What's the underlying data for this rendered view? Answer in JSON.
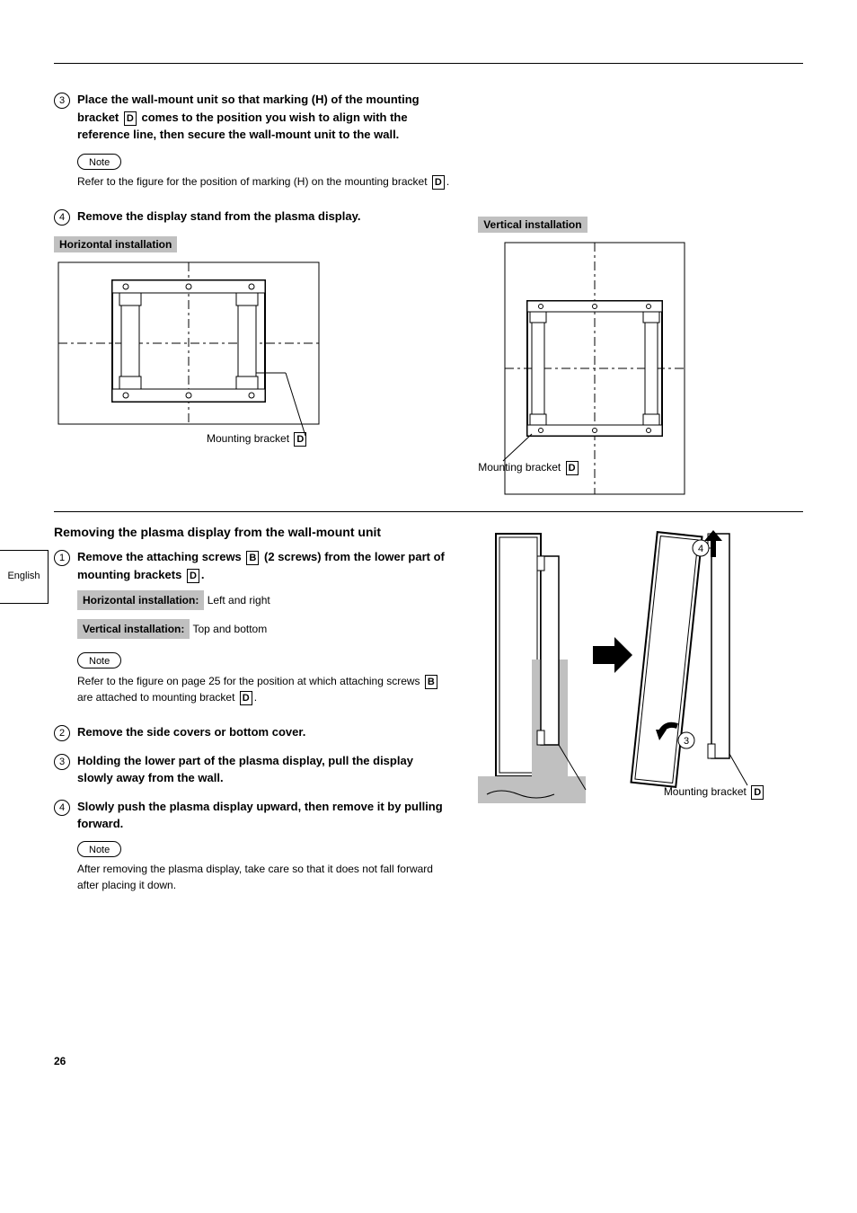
{
  "page_number": "26",
  "language_tab": "English",
  "section_upper": {
    "step3": "Place the wall-mount unit so that marking (H) of the mounting bracket [D] comes to the position you wish to align with the reference line, then secure the wall-mount unit to the wall.",
    "note_label": "Note",
    "note_body": "Refer to the figure for the position of marking (H) on the mounting bracket [D].",
    "step4": "Remove the display stand from the plasma display."
  },
  "horizontal_label": "Horizontal installation",
  "vertical_label": "Vertical installation",
  "mounting_bracket": "Mounting bracket [D]",
  "section_lower": {
    "title": "Removing the plasma display from the wall-mount unit",
    "step1": "Remove the attaching screws [B] (2 screws) from the lower part of mounting brackets [D].",
    "horizontal_sub": "Horizontal installation:",
    "vertical_sub": "Vertical installation:",
    "note_label": "Note",
    "note_body": "Refer to the figure on page 25 for the position at which attaching screws [B] are attached to mounting bracket [D].",
    "step2": "Remove the side covers or bottom cover.",
    "step3": "Holding the lower part of the plasma display, pull the display slowly away from the wall.",
    "step4": "Slowly push the plasma display upward, then remove it by pulling forward.",
    "note2_label": "Note",
    "note2_body": "After removing the plasma display, take care so that it does not fall forward after placing it down."
  },
  "fig_right_caption": "Mounting bracket [D]",
  "colors": {
    "shade": "#c0c0c0",
    "line": "#000000",
    "bg": "#ffffff"
  }
}
